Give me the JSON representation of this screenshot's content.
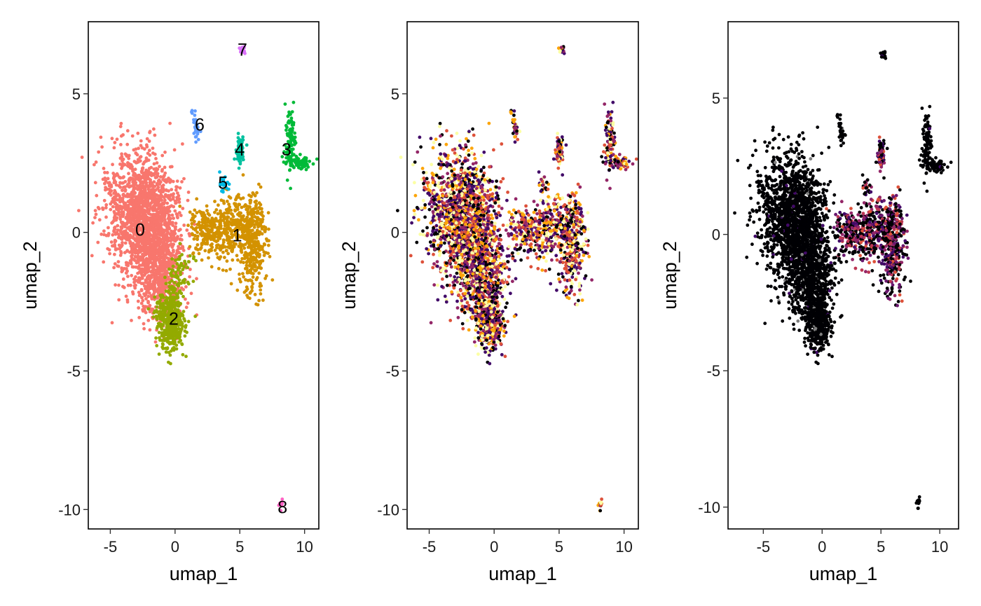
{
  "chart_data": [
    {
      "type": "scatter",
      "xlabel": "umap_1",
      "ylabel": "umap_2",
      "xlim": [
        -6.7,
        11.1
      ],
      "ylim": [
        -10.7,
        7.6
      ],
      "x_ticks": [
        -5,
        0,
        5,
        10
      ],
      "x_tick_labels": [
        "-5",
        "0",
        "5",
        "10"
      ],
      "y_ticks": [
        -10,
        -5,
        0,
        5
      ],
      "y_tick_labels": [
        "-10",
        "-5",
        "0",
        "5"
      ],
      "grid": false,
      "legend": "none",
      "color_mode": "cluster",
      "clusters": [
        {
          "id": "0",
          "color": "#F8766D",
          "label_pos": [
            -2.7,
            0.1
          ]
        },
        {
          "id": "1",
          "color": "#D39200",
          "label_pos": [
            4.8,
            -0.1
          ]
        },
        {
          "id": "2",
          "color": "#93AA00",
          "label_pos": [
            -0.1,
            -3.1
          ]
        },
        {
          "id": "3",
          "color": "#00BA38",
          "label_pos": [
            8.6,
            3.0
          ]
        },
        {
          "id": "4",
          "color": "#00C19F",
          "label_pos": [
            5.0,
            3.0
          ]
        },
        {
          "id": "5",
          "color": "#00B9E3",
          "label_pos": [
            3.7,
            1.8
          ]
        },
        {
          "id": "6",
          "color": "#619CFF",
          "label_pos": [
            1.9,
            3.9
          ]
        },
        {
          "id": "7",
          "color": "#DB72FB",
          "label_pos": [
            5.2,
            6.6
          ]
        },
        {
          "id": "8",
          "color": "#FF61C3",
          "label_pos": [
            8.3,
            -9.9
          ]
        }
      ]
    },
    {
      "type": "scatter",
      "xlabel": "umap_1",
      "ylabel": "umap_2",
      "xlim": [
        -6.7,
        11.1
      ],
      "ylim": [
        -10.7,
        7.6
      ],
      "x_ticks": [
        -5,
        0,
        5,
        10
      ],
      "x_tick_labels": [
        "-5",
        "0",
        "5",
        "10"
      ],
      "y_ticks": [
        -10,
        -5,
        0,
        5
      ],
      "y_tick_labels": [
        "-10",
        "-5",
        "0",
        "5"
      ],
      "grid": false,
      "legend": "none",
      "color_mode": "expression-inferno",
      "colors": [
        "#000004",
        "#420A68",
        "#932667",
        "#DD513A",
        "#FCA50A",
        "#FCFFA4"
      ]
    },
    {
      "type": "scatter",
      "xlabel": "umap_1",
      "ylabel": "umap_2",
      "xlim": [
        -8.0,
        11.6
      ],
      "ylim": [
        -10.8,
        7.8
      ],
      "x_ticks": [
        -5,
        0,
        5,
        10
      ],
      "x_tick_labels": [
        "-5",
        "0",
        "5",
        "10"
      ],
      "y_ticks": [
        -10,
        -5,
        0,
        5
      ],
      "y_tick_labels": [
        "-10",
        "-5",
        "0",
        "5"
      ],
      "grid": false,
      "legend": "none",
      "color_mode": "expression-low",
      "colors": [
        "#000004",
        "#420A68",
        "#6A176E",
        "#932667",
        "#BC3754",
        "#DD513A",
        "#808080"
      ]
    }
  ]
}
